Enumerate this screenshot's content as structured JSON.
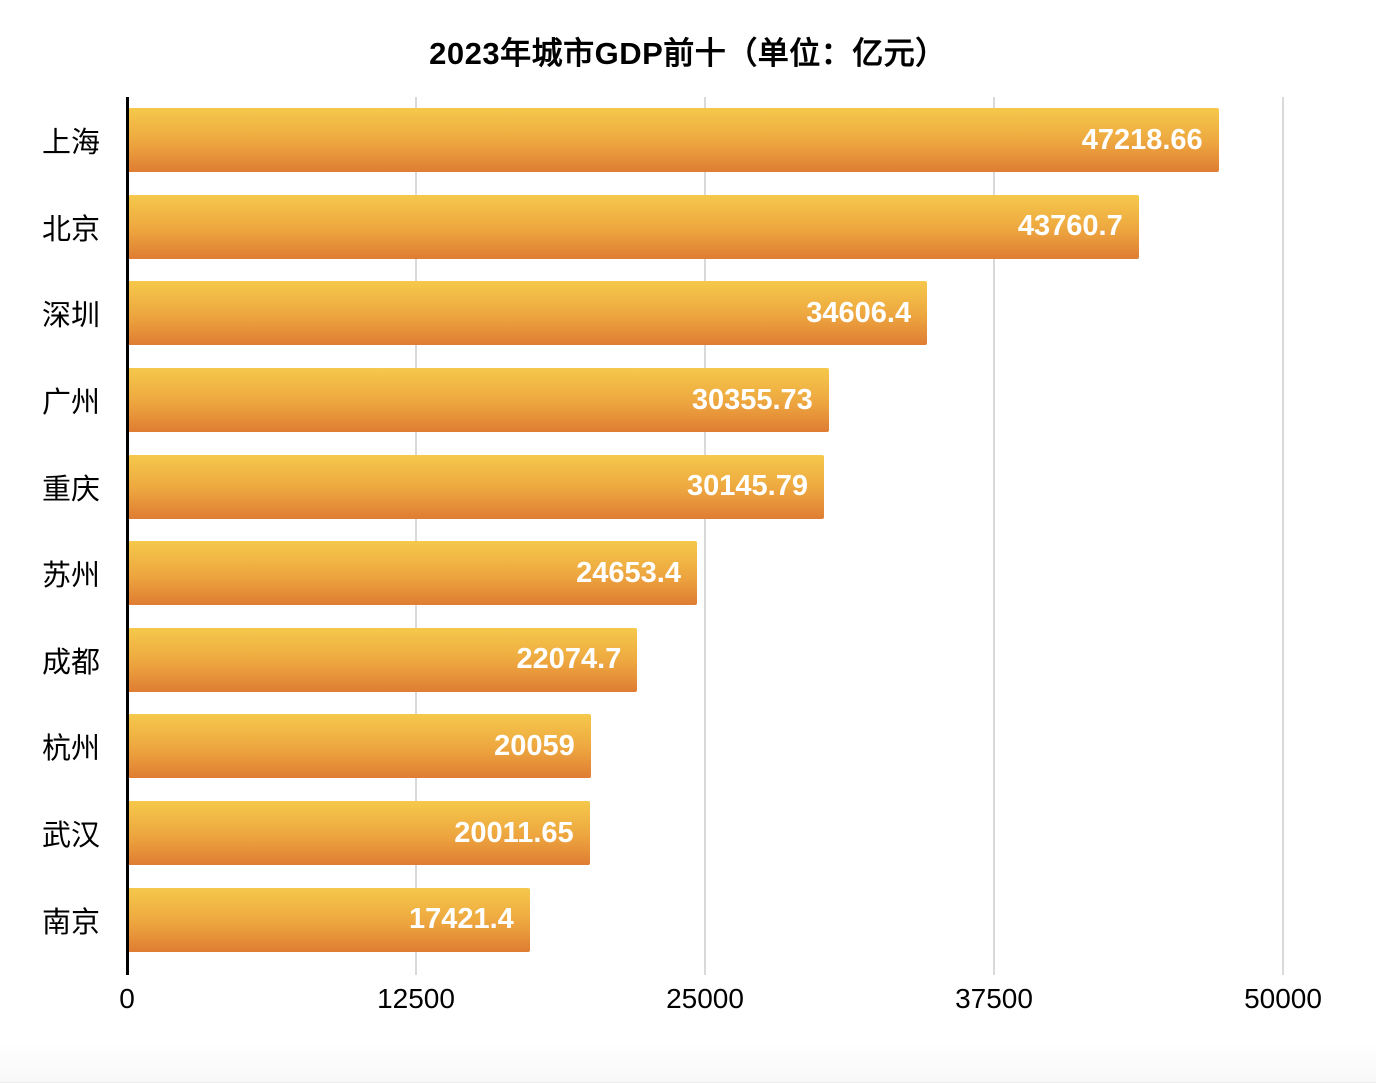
{
  "chart_data": {
    "type": "bar",
    "orientation": "horizontal",
    "title": "2023年城市GDP前十（单位：亿元）",
    "categories": [
      "上海",
      "北京",
      "深圳",
      "广州",
      "重庆",
      "苏州",
      "成都",
      "杭州",
      "武汉",
      "南京"
    ],
    "values": [
      47218.66,
      43760.7,
      34606.4,
      30355.73,
      30145.79,
      24653.4,
      22074.7,
      20059,
      20011.65,
      17421.4
    ],
    "value_labels": [
      "47218.66",
      "43760.7",
      "34606.4",
      "30355.73",
      "30145.79",
      "24653.4",
      "22074.7",
      "20059",
      "20011.65",
      "17421.4"
    ],
    "xlabel": "",
    "ylabel": "",
    "xlim": [
      0,
      50000
    ],
    "xticks": [
      0,
      12500,
      25000,
      37500,
      50000
    ],
    "xtick_labels": [
      "0",
      "12500",
      "25000",
      "37500",
      "50000"
    ],
    "grid": true,
    "legend": "none",
    "colors": {
      "bar_gradient_top": "#F5C94B",
      "bar_gradient_mid": "#EDA53F",
      "bar_gradient_bottom": "#DF7D33",
      "gridline": "#D9D9D9",
      "axis_line": "#000000",
      "value_text": "#FFFFFF",
      "label_text": "#000000",
      "background": "#FFFFFF"
    }
  }
}
